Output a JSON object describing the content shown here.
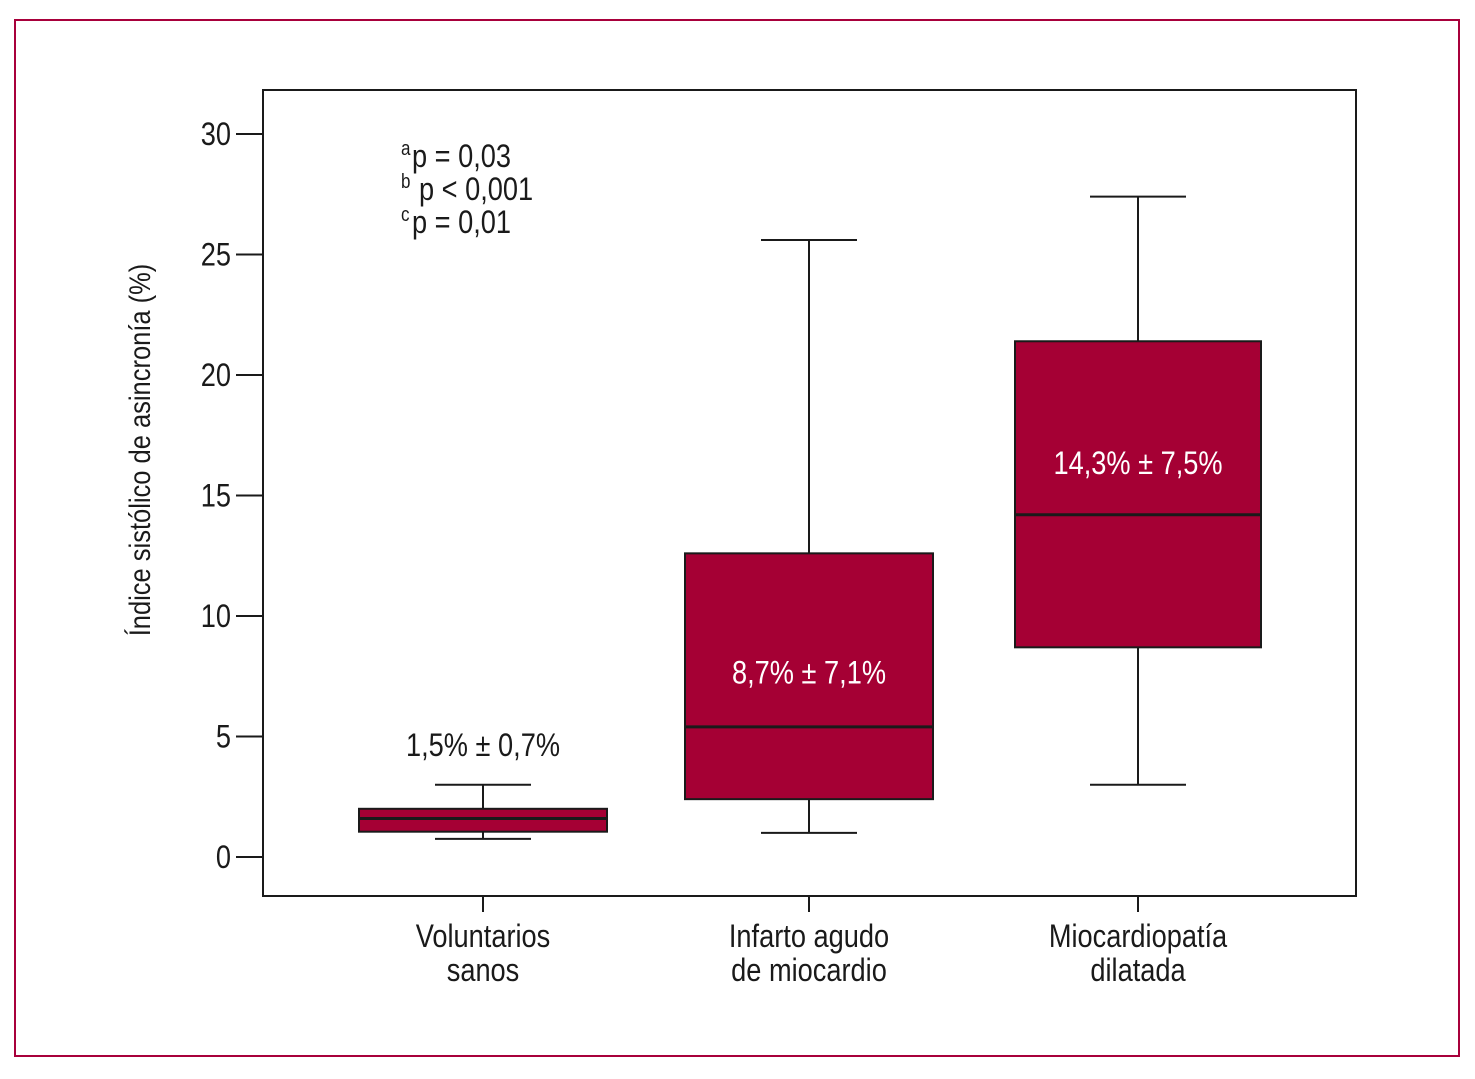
{
  "chart_data": {
    "type": "box",
    "ylabel": "Índice sistólico de asincronía (%)",
    "ylim": [
      0,
      30
    ],
    "yticks": [
      0,
      5,
      10,
      15,
      20,
      25,
      30
    ],
    "box_color": "#a50034",
    "categories": [
      {
        "label_lines": [
          "Voluntarios",
          "sanos"
        ],
        "whisker_low": 0.75,
        "q1": 1.05,
        "median": 1.6,
        "q3": 2.0,
        "whisker_high": 3.0,
        "annotation": "1,5% ± 0,7%",
        "annotation_value": 4.2
      },
      {
        "label_lines": [
          "Infarto agudo",
          "de miocardio"
        ],
        "whisker_low": 1.0,
        "q1": 2.4,
        "median": 5.4,
        "q3": 12.6,
        "whisker_high": 25.6,
        "annotation": "8,7% ± 7,1%",
        "annotation_value": 7.2
      },
      {
        "label_lines": [
          "Miocardiopatía",
          "dilatada"
        ],
        "whisker_low": 3.0,
        "q1": 8.7,
        "median": 14.2,
        "q3": 21.4,
        "whisker_high": 27.4,
        "annotation": "14,3% ± 7,5%",
        "annotation_value": 15.9
      }
    ],
    "pvalues": [
      {
        "sup": "a",
        "text": "p = 0,03"
      },
      {
        "sup": "b",
        "text": "p < 0,001"
      },
      {
        "sup": "c",
        "text": "p = 0,01"
      }
    ]
  }
}
